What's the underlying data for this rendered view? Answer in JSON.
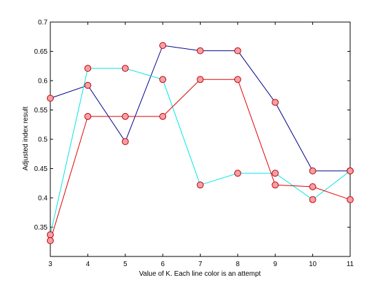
{
  "chart_data": {
    "type": "line",
    "title": "",
    "xlabel": "Value of K. Each line color is an attempt",
    "ylabel": "Adjusted index result",
    "xlim": [
      3,
      11
    ],
    "ylim": [
      0.3,
      0.7
    ],
    "x_ticks": [
      "3",
      "4",
      "5",
      "6",
      "7",
      "8",
      "9",
      "10",
      "11"
    ],
    "y_ticks": [
      "0.35",
      "0.4",
      "0.45",
      "0.5",
      "0.55",
      "0.6",
      "0.65",
      "0.7"
    ],
    "grid": false,
    "legend": "none",
    "marker": {
      "shape": "circle",
      "fill": "#f4a0a8",
      "edge": "#c00000"
    },
    "x": [
      3,
      4,
      5,
      6,
      7,
      8,
      9,
      10,
      11
    ],
    "series": [
      {
        "color": "#00008b",
        "values": [
          0.57,
          0.592,
          0.496,
          0.66,
          0.651,
          0.651,
          0.563,
          0.446,
          0.446
        ]
      },
      {
        "color": "#00e5e5",
        "values": [
          0.337,
          0.621,
          0.621,
          0.602,
          0.422,
          0.442,
          0.442,
          0.397,
          0.446
        ]
      },
      {
        "color": "#e00000",
        "values": [
          0.327,
          0.539,
          0.539,
          0.539,
          0.602,
          0.602,
          0.422,
          0.419,
          0.397
        ]
      }
    ]
  }
}
